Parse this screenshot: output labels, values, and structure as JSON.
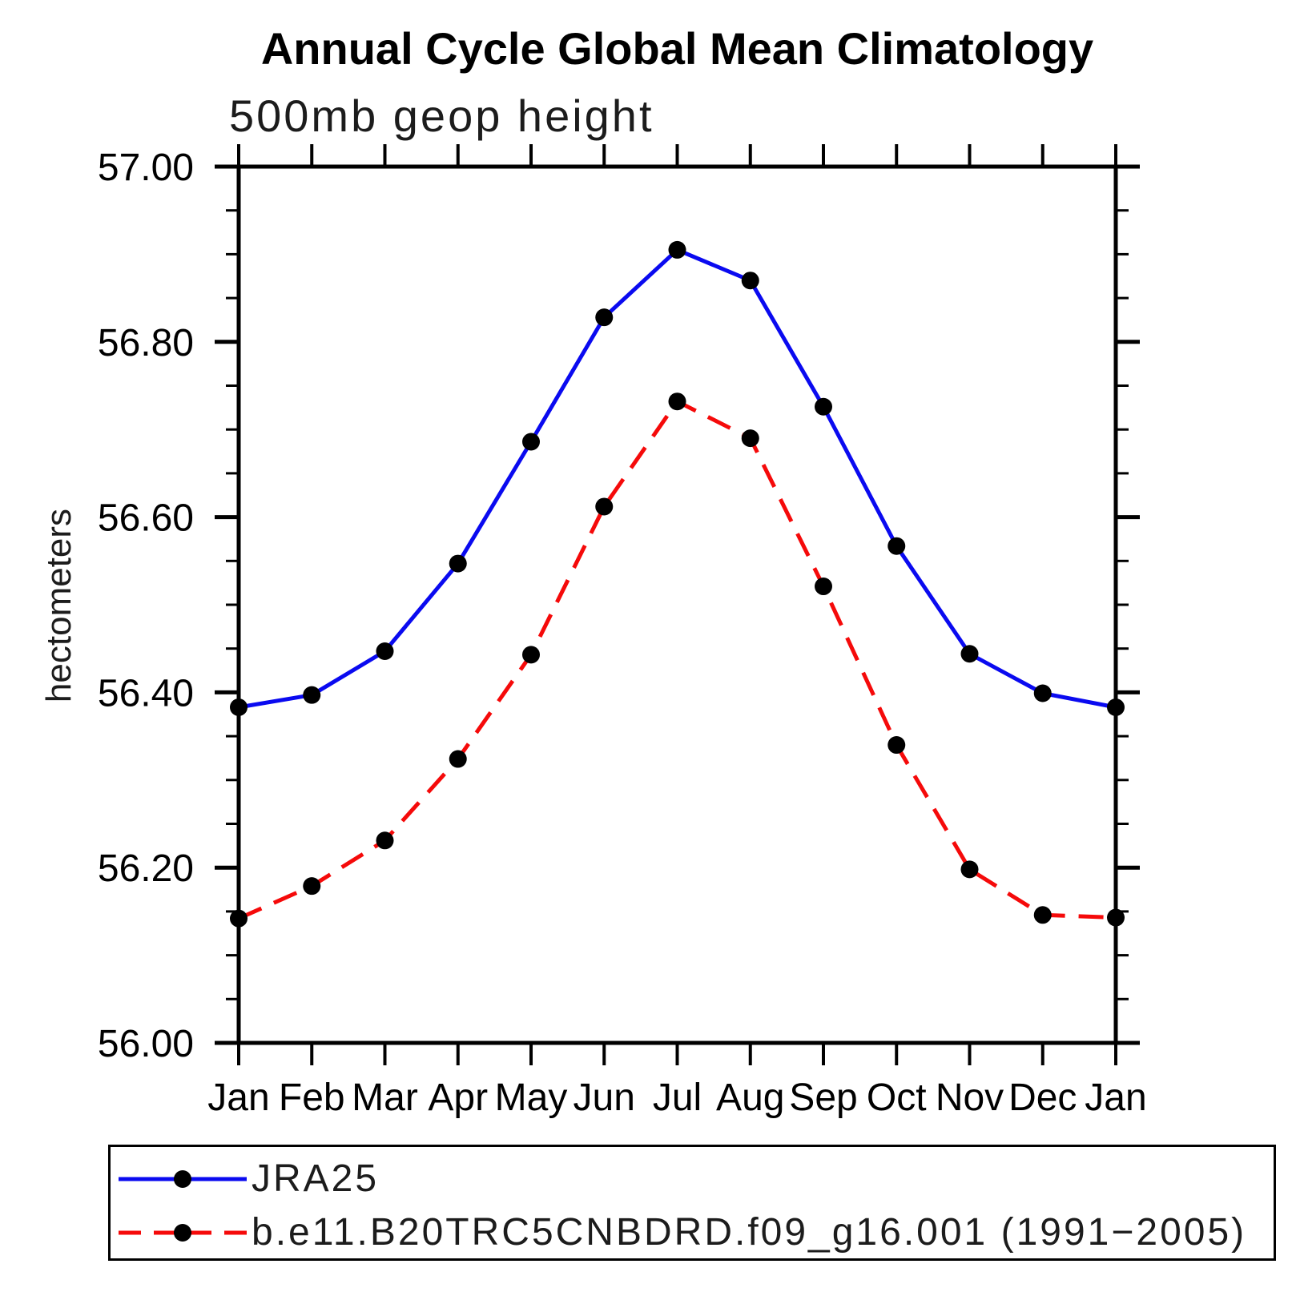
{
  "title": "Annual Cycle Global Mean Climatology",
  "subtitle": "500mb geop height",
  "y_axis_label": "hectometers",
  "legend": {
    "marker_color": "#000000",
    "items": [
      {
        "label": "JRA25",
        "color": "#0a0af0",
        "line_style": "solid"
      },
      {
        "label": "b.e11.B20TRC5CNBDRD.f09_g16.001 (1991−2005)",
        "color": "#f50a0a",
        "line_style": "dashed"
      }
    ]
  },
  "chart_data": {
    "type": "line",
    "title": "500mb geop height",
    "xlabel": "",
    "ylabel": "hectometers",
    "categories": [
      "Jan",
      "Feb",
      "Mar",
      "Apr",
      "May",
      "Jun",
      "Jul",
      "Aug",
      "Sep",
      "Oct",
      "Nov",
      "Dec",
      "Jan"
    ],
    "series": [
      {
        "name": "JRA25",
        "color": "#0a0af0",
        "line_style": "solid",
        "marker": "filled-circle",
        "values": [
          56.383,
          56.397,
          56.447,
          56.547,
          56.686,
          56.828,
          56.905,
          56.87,
          56.726,
          56.567,
          56.444,
          56.399,
          56.383
        ]
      },
      {
        "name": "b.e11.B20TRC5CNBDRD.f09_g16.001 (1991−2005)",
        "color": "#f50a0a",
        "line_style": "dashed",
        "marker": "filled-circle",
        "values": [
          56.142,
          56.179,
          56.231,
          56.324,
          56.443,
          56.612,
          56.732,
          56.69,
          56.521,
          56.34,
          56.198,
          56.146,
          56.143
        ]
      }
    ],
    "ylim": [
      56.0,
      57.0
    ],
    "yticks_major": [
      56.0,
      56.2,
      56.4,
      56.6,
      56.8,
      57.0
    ],
    "ytick_labels": [
      "56.00",
      "56.20",
      "56.40",
      "56.60",
      "56.80",
      "57.00"
    ],
    "ytick_minor_step": 0.05,
    "grid": false,
    "legend_position": "bottom"
  }
}
